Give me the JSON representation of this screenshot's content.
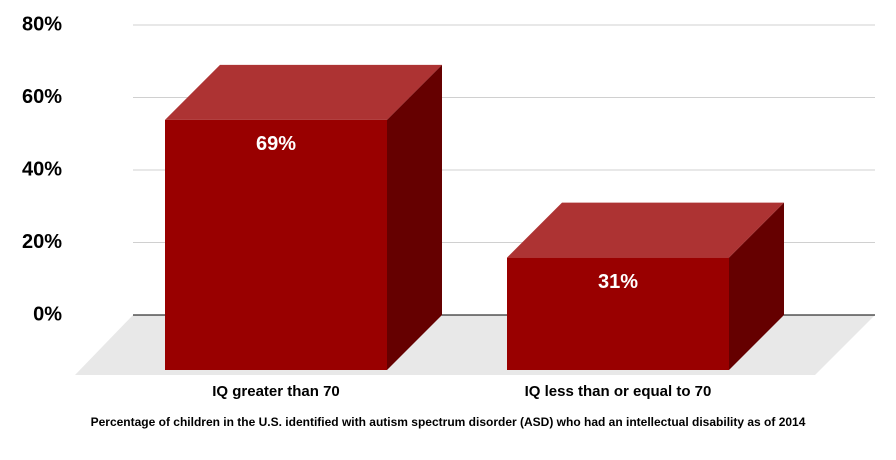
{
  "chart_data": {
    "type": "bar3d",
    "caption": "Percentage of children in the U.S. identified with autism spectrum disorder (ASD) who had an intellectual disability as of 2014",
    "categories": [
      "IQ greater than 70",
      "IQ less than or equal to 70"
    ],
    "values": [
      69,
      31
    ],
    "value_labels": [
      "69%",
      "31%"
    ],
    "color": "#990000",
    "ylim": [
      0,
      80
    ],
    "yticks": [
      {
        "value": 0,
        "label": "0%"
      },
      {
        "value": 20,
        "label": "20%"
      },
      {
        "value": 40,
        "label": "40%"
      },
      {
        "value": 60,
        "label": "60%"
      },
      {
        "value": 80,
        "label": "80%"
      }
    ],
    "grid": true
  }
}
